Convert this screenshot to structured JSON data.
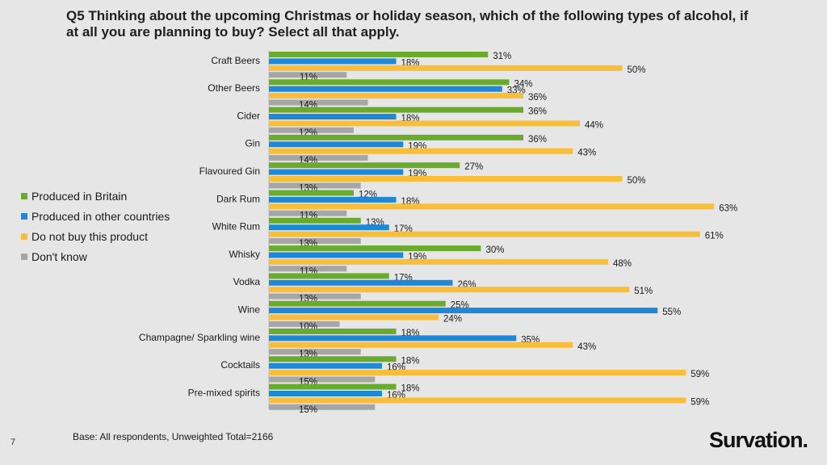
{
  "slide": {
    "title": "Q5 Thinking about the upcoming Christmas or holiday season, which of the following types of alcohol, if at all you are planning to buy? Select all that apply.",
    "footnote": "Base: All respondents, Unweighted Total=2166",
    "page_number": "7",
    "logo_text": "Survation."
  },
  "chart_data": {
    "type": "bar",
    "orientation": "horizontal",
    "title": "Q5 Thinking about the upcoming Christmas or holiday season, which of the following types of alcohol, if at all you are planning to buy? Select all that apply.",
    "xlabel": "",
    "ylabel": "",
    "xlim": [
      0,
      100
    ],
    "value_suffix": "%",
    "grid": false,
    "legend_position": "left",
    "categories": [
      "Craft Beers",
      "Other Beers",
      "Cider",
      "Gin",
      "Flavoured Gin",
      "Dark Rum",
      "White Rum",
      "Whisky",
      "Vodka",
      "Wine",
      "Champagne/ Sparkling wine",
      "Cocktails",
      "Pre-mixed spirits"
    ],
    "series": [
      {
        "name": "Produced in Britain",
        "color": "#6aab2e",
        "values": [
          31,
          34,
          36,
          36,
          27,
          12,
          13,
          30,
          17,
          25,
          18,
          18,
          18
        ]
      },
      {
        "name": "Produced in other countries",
        "color": "#1e88d6",
        "values": [
          18,
          33,
          18,
          19,
          19,
          18,
          17,
          19,
          26,
          55,
          35,
          16,
          16
        ]
      },
      {
        "name": "Do not buy this product",
        "color": "#f8bd3a",
        "values": [
          50,
          36,
          44,
          43,
          50,
          63,
          61,
          48,
          51,
          24,
          43,
          59,
          59
        ]
      },
      {
        "name": "Don't know",
        "color": "#a6a6a6",
        "values": [
          11,
          14,
          12,
          14,
          13,
          11,
          13,
          11,
          13,
          10,
          13,
          15,
          15
        ]
      }
    ]
  }
}
